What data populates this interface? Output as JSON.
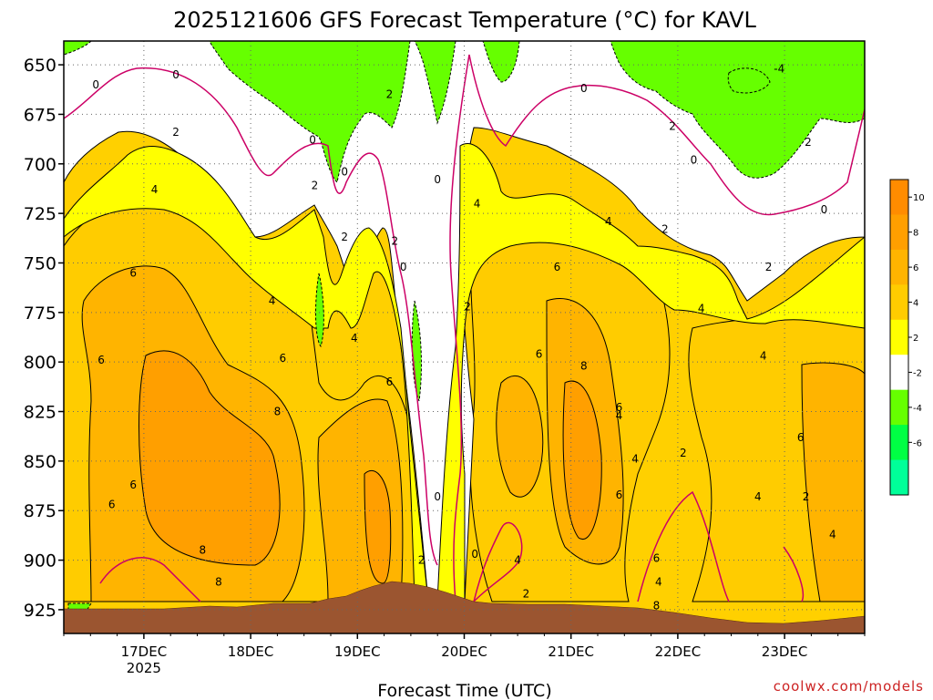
{
  "chart_data": {
    "type": "heatmap",
    "title": "2025121606 GFS Forecast Temperature (°C) for KAVL",
    "xlabel": "Forecast Time (UTC)",
    "ylabel": "",
    "credit": "coolwx.com/models",
    "x_ticks": [
      {
        "label": "17DEC",
        "sub": "2025",
        "day": 17
      },
      {
        "label": "18DEC",
        "sub": "",
        "day": 18
      },
      {
        "label": "19DEC",
        "sub": "",
        "day": 19
      },
      {
        "label": "20DEC",
        "sub": "",
        "day": 20
      },
      {
        "label": "21DEC",
        "sub": "",
        "day": 21
      },
      {
        "label": "22DEC",
        "sub": "",
        "day": 22
      },
      {
        "label": "23DEC",
        "sub": "",
        "day": 23
      }
    ],
    "xlim": [
      16.25,
      23.75
    ],
    "ylim": [
      937,
      638
    ],
    "y_ticks": [
      650,
      675,
      700,
      725,
      750,
      775,
      800,
      825,
      850,
      875,
      900,
      925
    ],
    "colorbar": {
      "ticks": [
        "10",
        "8",
        "6",
        "4",
        "2",
        "-2",
        "-4",
        "-6"
      ],
      "bins": [
        {
          "range": "10-12",
          "color": "#ff8c00"
        },
        {
          "range": "8-10",
          "color": "#ff9f00"
        },
        {
          "range": "6-8",
          "color": "#ffb400"
        },
        {
          "range": "4-6",
          "color": "#ffcc00"
        },
        {
          "range": "2-4",
          "color": "#ffff00"
        },
        {
          "range": "-2-2",
          "color": "#ffffff"
        },
        {
          "range": "-4--2",
          "color": "#66ff00"
        },
        {
          "range": "-6--4",
          "color": "#00ff44"
        },
        {
          "range": "-8--6",
          "color": "#00ff99"
        }
      ]
    },
    "contour_labels": [
      {
        "text": "0",
        "x": 16.55,
        "p": 660
      },
      {
        "text": "0",
        "x": 17.3,
        "p": 655
      },
      {
        "text": "2",
        "x": 17.3,
        "p": 684
      },
      {
        "text": "4",
        "x": 17.1,
        "p": 713
      },
      {
        "text": "6",
        "x": 16.9,
        "p": 755
      },
      {
        "text": "6",
        "x": 16.6,
        "p": 799
      },
      {
        "text": "6",
        "x": 16.9,
        "p": 862
      },
      {
        "text": "6",
        "x": 16.7,
        "p": 872
      },
      {
        "text": "8",
        "x": 17.55,
        "p": 895
      },
      {
        "text": "8",
        "x": 17.7,
        "p": 911
      },
      {
        "text": "4",
        "x": 18.2,
        "p": 769
      },
      {
        "text": "6",
        "x": 18.3,
        "p": 798
      },
      {
        "text": "8",
        "x": 18.25,
        "p": 825
      },
      {
        "text": "0",
        "x": 18.58,
        "p": 688
      },
      {
        "text": "2",
        "x": 18.6,
        "p": 711
      },
      {
        "text": "0",
        "x": 18.88,
        "p": 704
      },
      {
        "text": "2",
        "x": 18.88,
        "p": 737
      },
      {
        "text": "2",
        "x": 19.3,
        "p": 665
      },
      {
        "text": "2",
        "x": 19.35,
        "p": 739
      },
      {
        "text": "0",
        "x": 19.43,
        "p": 752
      },
      {
        "text": "4",
        "x": 18.97,
        "p": 788
      },
      {
        "text": "6",
        "x": 19.3,
        "p": 810
      },
      {
        "text": "0",
        "x": 19.75,
        "p": 708
      },
      {
        "text": "2",
        "x": 20.03,
        "p": 772
      },
      {
        "text": "0",
        "x": 19.75,
        "p": 868
      },
      {
        "text": "2",
        "x": 19.6,
        "p": 900
      },
      {
        "text": "0",
        "x": 20.1,
        "p": 897
      },
      {
        "text": "4",
        "x": 20.12,
        "p": 720
      },
      {
        "text": "6",
        "x": 20.7,
        "p": 796
      },
      {
        "text": "4",
        "x": 20.5,
        "p": 900
      },
      {
        "text": "2",
        "x": 20.58,
        "p": 917
      },
      {
        "text": "6",
        "x": 20.87,
        "p": 752
      },
      {
        "text": "8",
        "x": 21.12,
        "p": 802
      },
      {
        "text": "6",
        "x": 21.45,
        "p": 823
      },
      {
        "text": "4",
        "x": 21.45,
        "p": 827
      },
      {
        "text": "4",
        "x": 21.6,
        "p": 849
      },
      {
        "text": "6",
        "x": 21.45,
        "p": 867
      },
      {
        "text": "0",
        "x": 21.12,
        "p": 662
      },
      {
        "text": "4",
        "x": 21.35,
        "p": 729
      },
      {
        "text": "2",
        "x": 21.95,
        "p": 681
      },
      {
        "text": "0",
        "x": 22.15,
        "p": 698
      },
      {
        "text": "2",
        "x": 21.88,
        "p": 733
      },
      {
        "text": "2",
        "x": 22.05,
        "p": 846
      },
      {
        "text": "6",
        "x": 21.8,
        "p": 899
      },
      {
        "text": "4",
        "x": 21.82,
        "p": 911
      },
      {
        "text": "8",
        "x": 21.8,
        "p": 923
      },
      {
        "text": "4",
        "x": 22.22,
        "p": 773
      },
      {
        "text": "4",
        "x": 22.8,
        "p": 797
      },
      {
        "text": "4",
        "x": 22.75,
        "p": 868
      },
      {
        "text": "2",
        "x": 22.85,
        "p": 752
      },
      {
        "text": "6",
        "x": 23.15,
        "p": 838
      },
      {
        "text": "2",
        "x": 23.2,
        "p": 868
      },
      {
        "text": "4",
        "x": 23.45,
        "p": 887
      },
      {
        "text": "-4",
        "x": 22.95,
        "p": 652
      },
      {
        "text": "2",
        "x": 23.22,
        "p": 689
      },
      {
        "text": "0",
        "x": 23.37,
        "p": 723
      }
    ]
  }
}
